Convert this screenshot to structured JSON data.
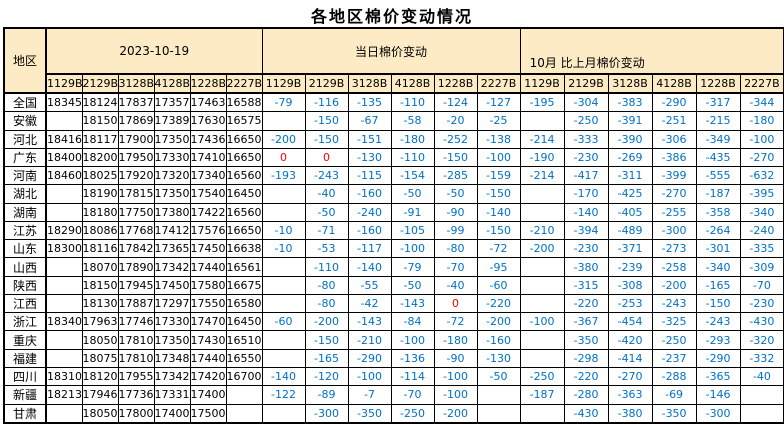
{
  "title": "各地区棉价变动情况",
  "colors": {
    "header_bg": "#FCEBC4",
    "change_text": "#0070C6",
    "zero_text": "#FF0000",
    "grid": "#000000"
  },
  "header": {
    "region_label": "地区",
    "groups": [
      {
        "label": "2023-10-19"
      },
      {
        "label": "当日棉价变动"
      },
      {
        "label": "10月 比上月棉价变动"
      }
    ],
    "grades": [
      "1129B",
      "2129B",
      "3128B",
      "4128B",
      "1228B",
      "2227B"
    ]
  },
  "rows": [
    {
      "region": "全国",
      "prices": [
        "18345",
        "18124",
        "17837",
        "17357",
        "17463",
        "16588"
      ],
      "daily": [
        "-79",
        "-116",
        "-135",
        "-110",
        "-124",
        "-127"
      ],
      "monthly": [
        "-195",
        "-304",
        "-383",
        "-290",
        "-317",
        "-344"
      ]
    },
    {
      "region": "安徽",
      "prices": [
        "",
        "18150",
        "17869",
        "17389",
        "17630",
        "16575"
      ],
      "daily": [
        "",
        "-150",
        "-67",
        "-58",
        "-20",
        "-25"
      ],
      "monthly": [
        "",
        "-250",
        "-391",
        "-251",
        "-215",
        "-180"
      ]
    },
    {
      "region": "河北",
      "prices": [
        "18416",
        "18117",
        "17900",
        "17350",
        "17436",
        "16650"
      ],
      "daily": [
        "-200",
        "-150",
        "-151",
        "-180",
        "-252",
        "-138"
      ],
      "monthly": [
        "-214",
        "-333",
        "-390",
        "-306",
        "-349",
        "-100"
      ]
    },
    {
      "region": "广东",
      "prices": [
        "18400",
        "18200",
        "17950",
        "17330",
        "17410",
        "16650"
      ],
      "daily": [
        "0",
        "0",
        "-130",
        "-110",
        "-150",
        "-100"
      ],
      "monthly": [
        "-190",
        "-230",
        "-269",
        "-386",
        "-435",
        "-270"
      ]
    },
    {
      "region": "河南",
      "prices": [
        "18460",
        "18025",
        "17920",
        "17320",
        "17340",
        "16560"
      ],
      "daily": [
        "-193",
        "-243",
        "-115",
        "-154",
        "-285",
        "-159"
      ],
      "monthly": [
        "-214",
        "-417",
        "-311",
        "-399",
        "-555",
        "-632"
      ]
    },
    {
      "region": "湖北",
      "prices": [
        "",
        "18190",
        "17815",
        "17350",
        "17540",
        "16450"
      ],
      "daily": [
        "",
        "-40",
        "-160",
        "-50",
        "-50",
        "-150"
      ],
      "monthly": [
        "",
        "-170",
        "-425",
        "-270",
        "-187",
        "-395"
      ]
    },
    {
      "region": "湖南",
      "prices": [
        "",
        "18180",
        "17750",
        "17380",
        "17422",
        "16560"
      ],
      "daily": [
        "",
        "-50",
        "-240",
        "-91",
        "-90",
        "-140"
      ],
      "monthly": [
        "",
        "-140",
        "-405",
        "-255",
        "-358",
        "-340"
      ]
    },
    {
      "region": "江苏",
      "prices": [
        "18290",
        "18086",
        "17768",
        "17412",
        "17576",
        "16650"
      ],
      "daily": [
        "-10",
        "-71",
        "-160",
        "-105",
        "-99",
        "-150"
      ],
      "monthly": [
        "-210",
        "-394",
        "-489",
        "-300",
        "-264",
        "-240"
      ]
    },
    {
      "region": "山东",
      "prices": [
        "18300",
        "18116",
        "17842",
        "17365",
        "17450",
        "16638"
      ],
      "daily": [
        "-10",
        "-53",
        "-117",
        "-100",
        "-80",
        "-72"
      ],
      "monthly": [
        "-200",
        "-230",
        "-371",
        "-273",
        "-301",
        "-335"
      ]
    },
    {
      "region": "山西",
      "prices": [
        "",
        "18070",
        "17890",
        "17342",
        "17440",
        "16561"
      ],
      "daily": [
        "",
        "-110",
        "-140",
        "-79",
        "-70",
        "-95"
      ],
      "monthly": [
        "",
        "-380",
        "-239",
        "-258",
        "-340",
        "-309"
      ]
    },
    {
      "region": "陕西",
      "prices": [
        "",
        "18150",
        "17945",
        "17450",
        "17580",
        "16675"
      ],
      "daily": [
        "",
        "-80",
        "-55",
        "-50",
        "-40",
        "-60"
      ],
      "monthly": [
        "",
        "-315",
        "-308",
        "-200",
        "-165",
        "-70"
      ]
    },
    {
      "region": "江西",
      "prices": [
        "",
        "18130",
        "17887",
        "17297",
        "17550",
        "16580"
      ],
      "daily": [
        "",
        "-80",
        "-42",
        "-143",
        "0",
        "-220"
      ],
      "monthly": [
        "",
        "-220",
        "-253",
        "-243",
        "-150",
        "-230"
      ]
    },
    {
      "region": "浙江",
      "prices": [
        "18340",
        "17963",
        "17746",
        "17330",
        "17470",
        "16450"
      ],
      "daily": [
        "-60",
        "-200",
        "-143",
        "-84",
        "-72",
        "-200"
      ],
      "monthly": [
        "-100",
        "-367",
        "-454",
        "-325",
        "-243",
        "-430"
      ]
    },
    {
      "region": "重庆",
      "prices": [
        "",
        "18050",
        "17810",
        "17350",
        "17430",
        "16510"
      ],
      "daily": [
        "",
        "-150",
        "-210",
        "-100",
        "-180",
        "-160"
      ],
      "monthly": [
        "",
        "-350",
        "-420",
        "-250",
        "-293",
        "-320"
      ]
    },
    {
      "region": "福建",
      "prices": [
        "",
        "18075",
        "17810",
        "17348",
        "17440",
        "16550"
      ],
      "daily": [
        "",
        "-165",
        "-290",
        "-136",
        "-90",
        "-130"
      ],
      "monthly": [
        "",
        "-298",
        "-414",
        "-237",
        "-290",
        "-332"
      ]
    },
    {
      "region": "四川",
      "prices": [
        "18310",
        "18120",
        "17955",
        "17342",
        "17420",
        "16700"
      ],
      "daily": [
        "-140",
        "-120",
        "-100",
        "-114",
        "-100",
        "-50"
      ],
      "monthly": [
        "-250",
        "-220",
        "-270",
        "-288",
        "-365",
        "-40"
      ]
    },
    {
      "region": "新疆",
      "prices": [
        "18213",
        "17946",
        "17736",
        "17331",
        "17400",
        ""
      ],
      "daily": [
        "-122",
        "-89",
        "-7",
        "-70",
        "-100",
        ""
      ],
      "monthly": [
        "-187",
        "-280",
        "-363",
        "-69",
        "-146",
        ""
      ]
    },
    {
      "region": "甘肃",
      "prices": [
        "",
        "18050",
        "17800",
        "17400",
        "17500",
        ""
      ],
      "daily": [
        "",
        "-300",
        "-350",
        "-250",
        "-200",
        ""
      ],
      "monthly": [
        "",
        "-430",
        "-380",
        "-350",
        "-300",
        ""
      ]
    }
  ]
}
